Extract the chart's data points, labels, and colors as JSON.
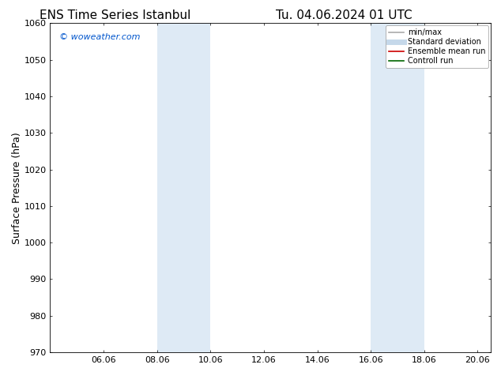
{
  "title_left": "ENS Time Series Istanbul",
  "title_right": "Tu. 04.06.2024 01 UTC",
  "ylabel": "Surface Pressure (hPa)",
  "ylim": [
    970,
    1060
  ],
  "yticks": [
    970,
    980,
    990,
    1000,
    1010,
    1020,
    1030,
    1040,
    1050,
    1060
  ],
  "xlim": [
    4.06,
    20.56
  ],
  "xticks": [
    6.06,
    8.06,
    10.06,
    12.06,
    14.06,
    16.06,
    18.06,
    20.06
  ],
  "xticklabels": [
    "06.06",
    "08.06",
    "10.06",
    "12.06",
    "14.06",
    "16.06",
    "18.06",
    "20.06"
  ],
  "watermark": "© woweather.com",
  "watermark_color": "#0055cc",
  "bg_color": "#ffffff",
  "plot_bg_color": "#ffffff",
  "shaded_bands": [
    {
      "xmin": 8.06,
      "xmax": 9.06,
      "color": "#deeaf5"
    },
    {
      "xmin": 9.06,
      "xmax": 10.06,
      "color": "#deeaf5"
    },
    {
      "xmin": 16.06,
      "xmax": 17.06,
      "color": "#deeaf5"
    },
    {
      "xmin": 17.06,
      "xmax": 18.06,
      "color": "#deeaf5"
    }
  ],
  "legend_entries": [
    {
      "label": "min/max",
      "color": "#aaaaaa",
      "lw": 1.2,
      "style": "solid"
    },
    {
      "label": "Standard deviation",
      "color": "#c5d8ea",
      "lw": 5,
      "style": "solid"
    },
    {
      "label": "Ensemble mean run",
      "color": "#cc0000",
      "lw": 1.2,
      "style": "solid"
    },
    {
      "label": "Controll run",
      "color": "#006600",
      "lw": 1.2,
      "style": "solid"
    }
  ],
  "title_fontsize": 11,
  "axis_label_fontsize": 9,
  "tick_fontsize": 8,
  "watermark_fontsize": 8,
  "legend_fontsize": 7
}
